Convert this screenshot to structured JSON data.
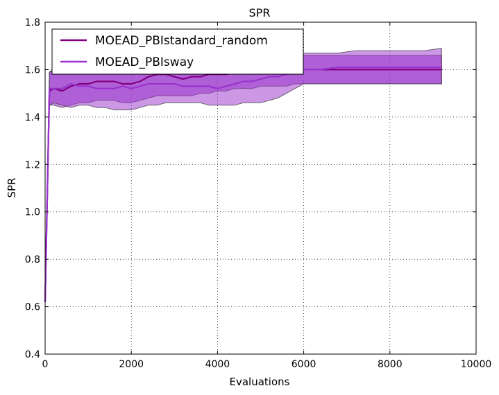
{
  "chart_data": {
    "type": "line",
    "title": "SPR",
    "xlabel": "Evaluations",
    "ylabel": "SPR",
    "xlim": [
      0,
      10000
    ],
    "ylim": [
      0.4,
      1.8
    ],
    "xticks": [
      0,
      2000,
      4000,
      6000,
      8000,
      10000
    ],
    "yticks": [
      0.4,
      0.6,
      0.8,
      1.0,
      1.2,
      1.4,
      1.6,
      1.8
    ],
    "xtick_labels": [
      "0",
      "2000",
      "4000",
      "6000",
      "8000",
      "10000"
    ],
    "ytick_labels": [
      "0.4",
      "0.6",
      "0.8",
      "1.0",
      "1.2",
      "1.4",
      "1.6",
      "1.8"
    ],
    "grid": true,
    "legend_position": "upper-left",
    "series": [
      {
        "name": "MOEAD_PBIstandard_random",
        "color": "#800080",
        "band_color": "#9932CC",
        "x": [
          0,
          100,
          200,
          400,
          600,
          800,
          1000,
          1200,
          1400,
          1600,
          1800,
          2000,
          2200,
          2400,
          2600,
          2800,
          3000,
          3200,
          3400,
          3600,
          3800,
          4000,
          4200,
          4400,
          4600,
          4800,
          5000,
          5200,
          5400,
          5600,
          5800,
          6000,
          6400,
          6800,
          7200,
          7600,
          8000,
          8400,
          8800,
          9200
        ],
        "mean": [
          0.62,
          1.51,
          1.52,
          1.51,
          1.53,
          1.54,
          1.54,
          1.55,
          1.55,
          1.55,
          1.54,
          1.54,
          1.55,
          1.57,
          1.58,
          1.58,
          1.57,
          1.56,
          1.57,
          1.57,
          1.58,
          1.58,
          1.58,
          1.59,
          1.59,
          1.59,
          1.6,
          1.6,
          1.6,
          1.6,
          1.6,
          1.6,
          1.6,
          1.6,
          1.6,
          1.6,
          1.6,
          1.6,
          1.6,
          1.6
        ],
        "upper": [
          0.62,
          1.59,
          1.6,
          1.59,
          1.6,
          1.61,
          1.61,
          1.62,
          1.62,
          1.62,
          1.62,
          1.62,
          1.63,
          1.63,
          1.64,
          1.64,
          1.64,
          1.63,
          1.64,
          1.64,
          1.65,
          1.65,
          1.65,
          1.65,
          1.65,
          1.66,
          1.66,
          1.66,
          1.66,
          1.66,
          1.66,
          1.66,
          1.66,
          1.66,
          1.66,
          1.66,
          1.66,
          1.66,
          1.66,
          1.66
        ],
        "lower": [
          0.62,
          1.45,
          1.45,
          1.44,
          1.45,
          1.46,
          1.46,
          1.47,
          1.47,
          1.47,
          1.46,
          1.46,
          1.47,
          1.48,
          1.49,
          1.49,
          1.49,
          1.49,
          1.49,
          1.5,
          1.5,
          1.51,
          1.51,
          1.52,
          1.52,
          1.52,
          1.53,
          1.53,
          1.53,
          1.53,
          1.54,
          1.54,
          1.54,
          1.54,
          1.54,
          1.54,
          1.54,
          1.54,
          1.54,
          1.54
        ]
      },
      {
        "name": "MOEAD_PBIsway",
        "color": "#9932CC",
        "band_color": "#9932CC",
        "x": [
          0,
          100,
          200,
          400,
          600,
          800,
          1000,
          1200,
          1400,
          1600,
          1800,
          2000,
          2200,
          2400,
          2600,
          2800,
          3000,
          3200,
          3400,
          3600,
          3800,
          4000,
          4200,
          4400,
          4600,
          4800,
          5000,
          5200,
          5400,
          5600,
          5800,
          6000,
          6400,
          6800,
          7200,
          7600,
          8000,
          8400,
          8800,
          9200
        ],
        "mean": [
          0.62,
          1.52,
          1.52,
          1.52,
          1.54,
          1.53,
          1.53,
          1.52,
          1.52,
          1.52,
          1.53,
          1.52,
          1.53,
          1.54,
          1.54,
          1.54,
          1.54,
          1.53,
          1.53,
          1.53,
          1.53,
          1.52,
          1.53,
          1.54,
          1.55,
          1.55,
          1.56,
          1.57,
          1.57,
          1.58,
          1.59,
          1.6,
          1.6,
          1.61,
          1.61,
          1.61,
          1.61,
          1.61,
          1.61,
          1.61
        ],
        "upper": [
          0.62,
          1.59,
          1.6,
          1.6,
          1.61,
          1.61,
          1.61,
          1.61,
          1.61,
          1.61,
          1.61,
          1.61,
          1.62,
          1.62,
          1.62,
          1.62,
          1.62,
          1.62,
          1.62,
          1.62,
          1.62,
          1.62,
          1.62,
          1.63,
          1.64,
          1.65,
          1.65,
          1.66,
          1.66,
          1.67,
          1.67,
          1.67,
          1.67,
          1.67,
          1.68,
          1.68,
          1.68,
          1.68,
          1.68,
          1.69
        ],
        "lower": [
          0.62,
          1.45,
          1.46,
          1.45,
          1.44,
          1.45,
          1.45,
          1.44,
          1.44,
          1.43,
          1.43,
          1.43,
          1.44,
          1.45,
          1.45,
          1.46,
          1.46,
          1.46,
          1.46,
          1.46,
          1.45,
          1.45,
          1.45,
          1.45,
          1.46,
          1.46,
          1.46,
          1.47,
          1.48,
          1.5,
          1.52,
          1.54,
          1.54,
          1.54,
          1.54,
          1.54,
          1.54,
          1.54,
          1.54,
          1.54
        ]
      }
    ]
  }
}
